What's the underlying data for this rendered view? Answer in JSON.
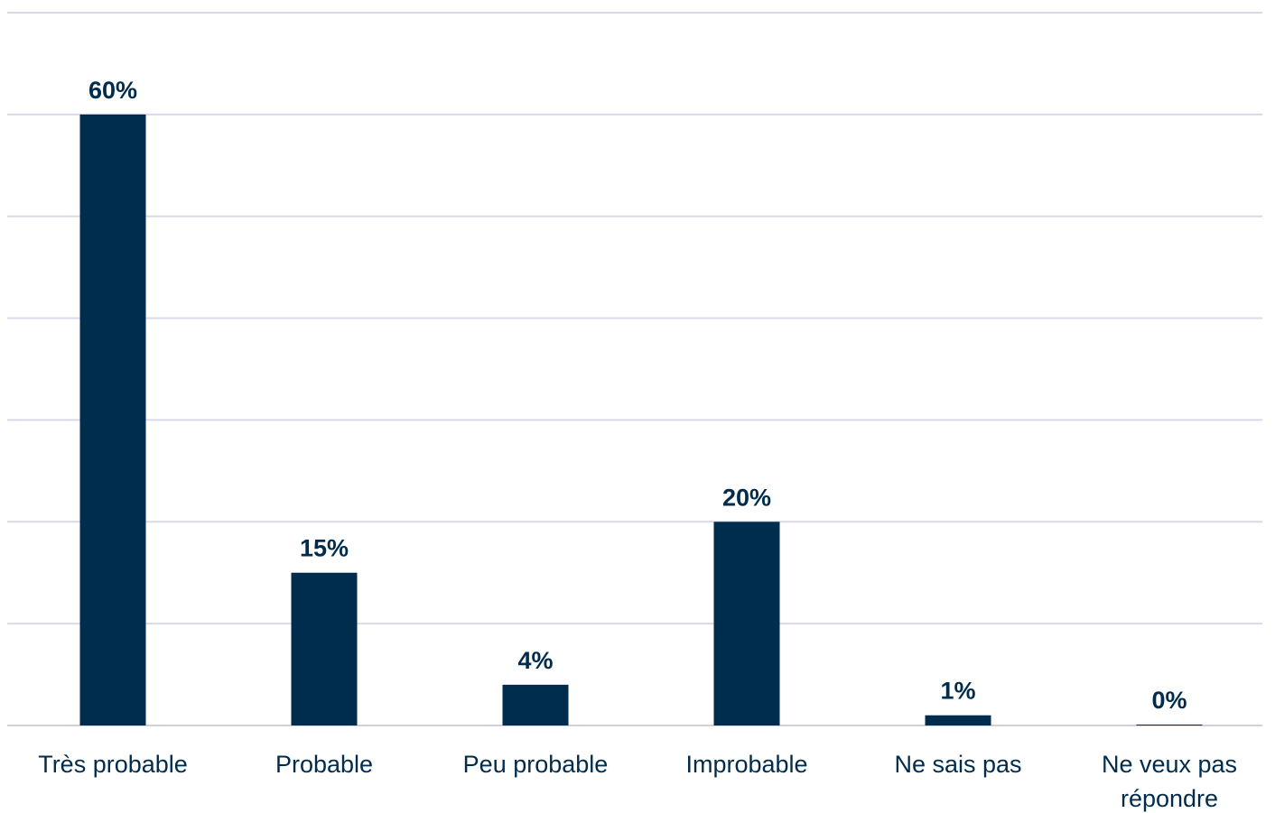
{
  "chart_data": {
    "type": "bar",
    "categories": [
      "Très probable",
      "Probable",
      "Peu probable",
      "Improbable",
      "Ne sais pas",
      "Ne veux pas répondre"
    ],
    "category_lines": [
      [
        "Très probable"
      ],
      [
        "Probable"
      ],
      [
        "Peu probable"
      ],
      [
        "Improbable"
      ],
      [
        "Ne sais pas"
      ],
      [
        "Ne veux pas",
        "répondre"
      ]
    ],
    "values": [
      60,
      15,
      4,
      20,
      1,
      0
    ],
    "data_labels": [
      "60%",
      "15%",
      "4%",
      "20%",
      "1%",
      "0%"
    ],
    "ylim": [
      0,
      70
    ],
    "grid": true,
    "bar_color": "#002c4e",
    "grid_color": "#d9d9e8"
  }
}
